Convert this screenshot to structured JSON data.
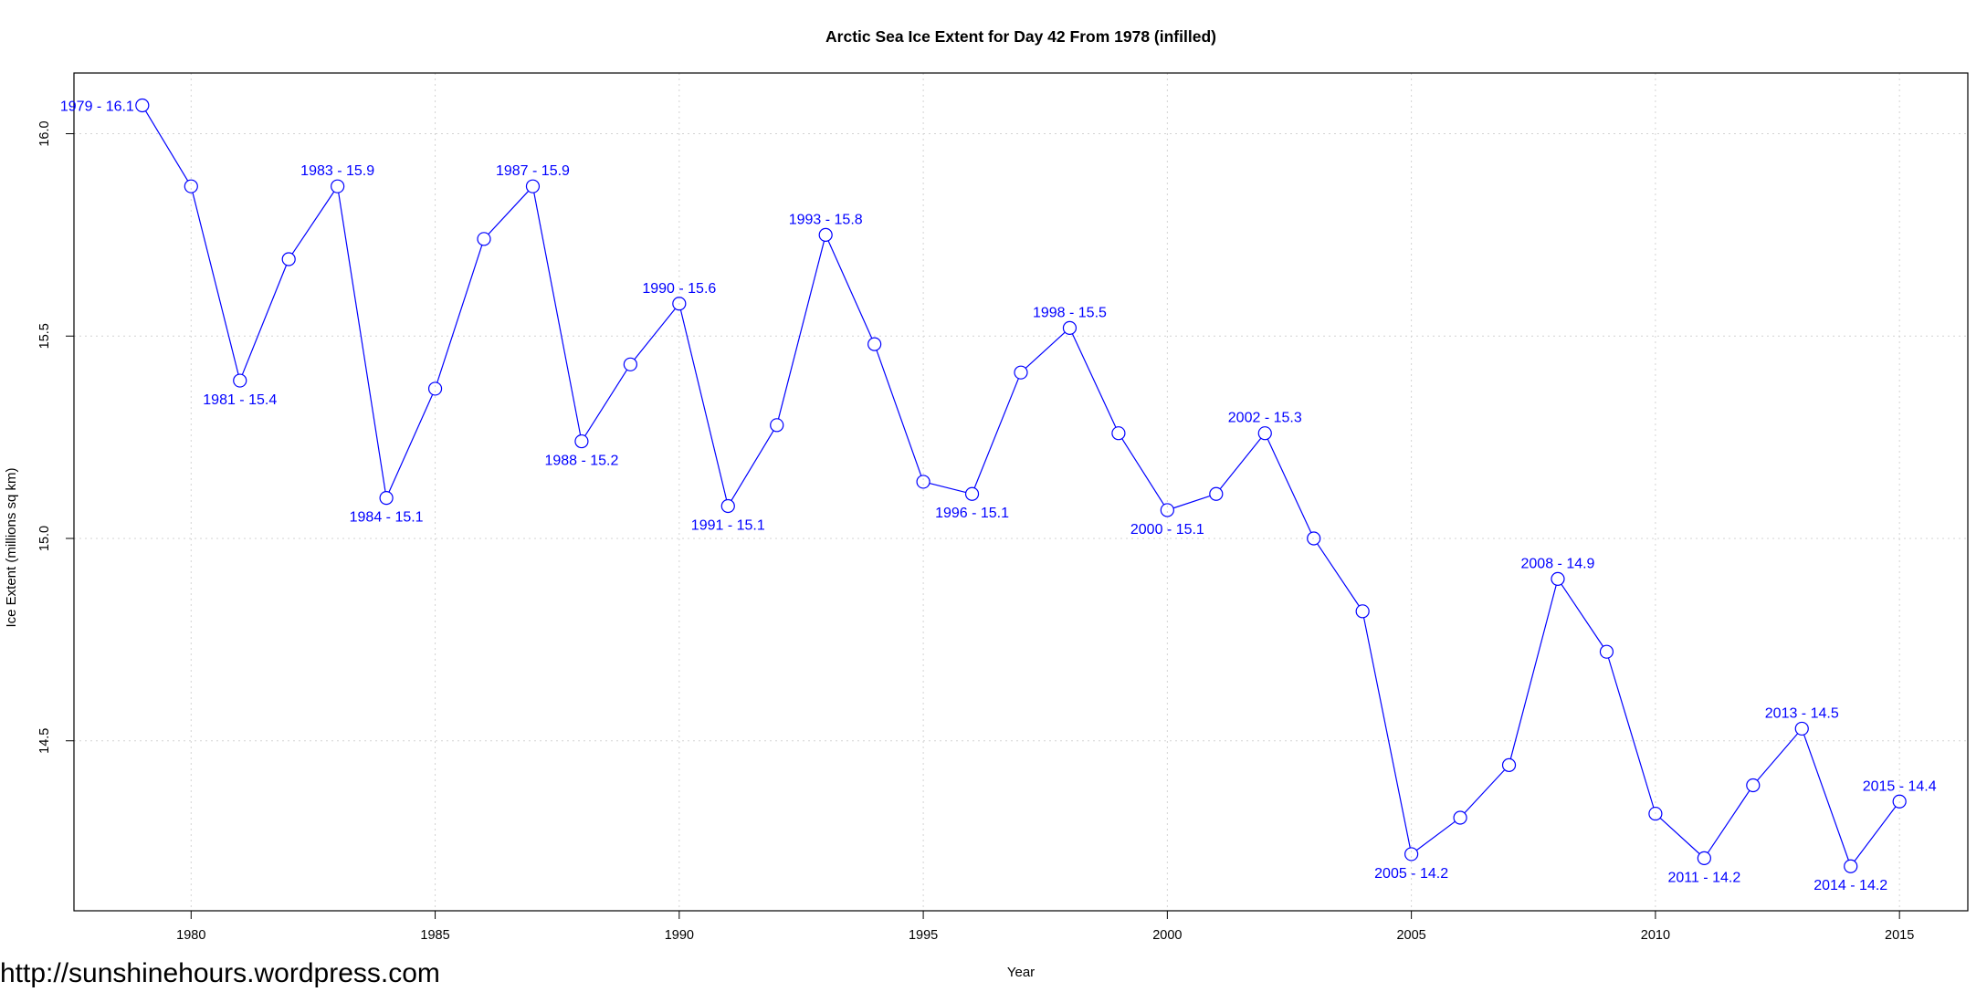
{
  "watermark": "http://sunshinehours.wordpress.com",
  "chart_data": {
    "type": "line",
    "title": "Arctic Sea Ice Extent for Day 42 From 1978 (infilled)",
    "xlabel": "Year",
    "ylabel": "Ice Extent (millions sq km)",
    "xlim": [
      1977.6,
      2016.4
    ],
    "ylim": [
      14.08,
      16.15
    ],
    "x_ticks": [
      1980,
      1985,
      1990,
      1995,
      2000,
      2005,
      2010,
      2015
    ],
    "y_ticks": [
      14.5,
      15.0,
      15.5,
      16.0
    ],
    "grid": true,
    "line_color": "#0000ff",
    "series": [
      {
        "x": [
          1979,
          1980,
          1981,
          1982,
          1983,
          1984,
          1985,
          1986,
          1987,
          1988,
          1989,
          1990,
          1991,
          1992,
          1993,
          1994,
          1995,
          1996,
          1997,
          1998,
          1999,
          2000,
          2001,
          2002,
          2003,
          2004,
          2005,
          2006,
          2007,
          2008,
          2009,
          2010,
          2011,
          2012,
          2013,
          2014,
          2015
        ],
        "y": [
          16.07,
          15.87,
          15.39,
          15.69,
          15.87,
          15.1,
          15.37,
          15.74,
          15.87,
          15.24,
          15.43,
          15.58,
          15.08,
          15.28,
          15.75,
          15.48,
          15.14,
          15.11,
          15.41,
          15.52,
          15.26,
          15.07,
          15.11,
          15.26,
          15.0,
          14.82,
          14.22,
          14.31,
          14.44,
          14.9,
          14.72,
          14.32,
          14.21,
          14.39,
          14.53,
          14.19,
          14.35
        ]
      }
    ],
    "annotations": [
      {
        "x": 1979,
        "y": 16.07,
        "text": "1979 - 16.1",
        "pos": "left"
      },
      {
        "x": 1981,
        "y": 15.39,
        "text": "1981 - 15.4",
        "pos": "below"
      },
      {
        "x": 1983,
        "y": 15.87,
        "text": "1983 - 15.9",
        "pos": "above"
      },
      {
        "x": 1984,
        "y": 15.1,
        "text": "1984 - 15.1",
        "pos": "below"
      },
      {
        "x": 1987,
        "y": 15.87,
        "text": "1987 - 15.9",
        "pos": "above"
      },
      {
        "x": 1988,
        "y": 15.24,
        "text": "1988 - 15.2",
        "pos": "below"
      },
      {
        "x": 1990,
        "y": 15.58,
        "text": "1990 - 15.6",
        "pos": "above"
      },
      {
        "x": 1991,
        "y": 15.08,
        "text": "1991 - 15.1",
        "pos": "below"
      },
      {
        "x": 1993,
        "y": 15.75,
        "text": "1993 - 15.8",
        "pos": "above"
      },
      {
        "x": 1996,
        "y": 15.11,
        "text": "1996 - 15.1",
        "pos": "below"
      },
      {
        "x": 1998,
        "y": 15.52,
        "text": "1998 - 15.5",
        "pos": "above"
      },
      {
        "x": 2000,
        "y": 15.07,
        "text": "2000 - 15.1",
        "pos": "below"
      },
      {
        "x": 2002,
        "y": 15.26,
        "text": "2002 - 15.3",
        "pos": "above"
      },
      {
        "x": 2005,
        "y": 14.22,
        "text": "2005 - 14.2",
        "pos": "below"
      },
      {
        "x": 2008,
        "y": 14.9,
        "text": "2008 - 14.9",
        "pos": "above"
      },
      {
        "x": 2011,
        "y": 14.21,
        "text": "2011 - 14.2",
        "pos": "below"
      },
      {
        "x": 2013,
        "y": 14.53,
        "text": "2013 - 14.5",
        "pos": "above"
      },
      {
        "x": 2014,
        "y": 14.19,
        "text": "2014 - 14.2",
        "pos": "below"
      },
      {
        "x": 2015,
        "y": 14.35,
        "text": "2015 - 14.4",
        "pos": "above"
      }
    ]
  }
}
